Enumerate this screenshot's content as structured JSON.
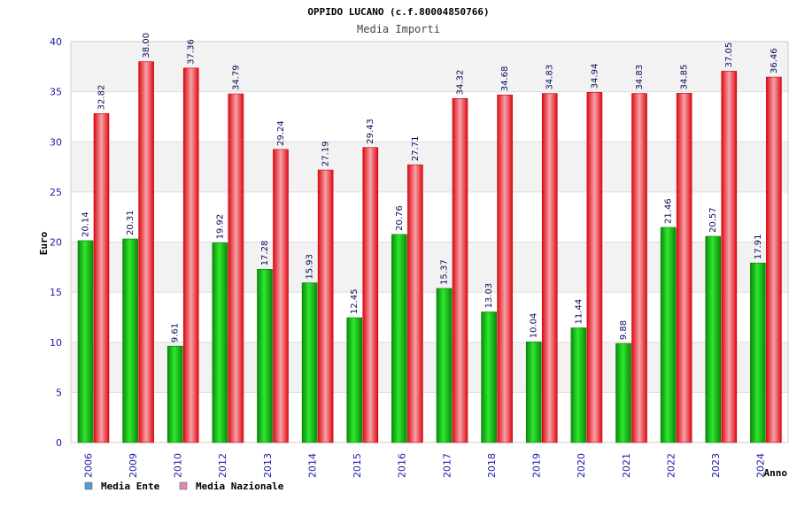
{
  "chart_data": {
    "type": "bar",
    "title": "OPPIDO LUCANO (c.f.80004850766)",
    "subtitle": "Media Importi",
    "xlabel": "Anno",
    "ylabel": "Euro",
    "ylim": [
      0,
      40
    ],
    "yticks": [
      0,
      5,
      10,
      15,
      20,
      25,
      30,
      35,
      40
    ],
    "grid": true,
    "legend_position": "bottom-left",
    "categories": [
      "2006",
      "2009",
      "2010",
      "2012",
      "2013",
      "2014",
      "2015",
      "2016",
      "2017",
      "2018",
      "2019",
      "2020",
      "2021",
      "2022",
      "2023",
      "2024"
    ],
    "series": [
      {
        "name": "Media Ente",
        "legend_color": "#5b9bd5",
        "bar_color": "#11b511",
        "values": [
          20.14,
          20.31,
          9.61,
          19.92,
          17.28,
          15.93,
          12.45,
          20.76,
          15.37,
          13.03,
          10.04,
          11.44,
          9.88,
          21.46,
          20.57,
          17.91
        ],
        "labels": [
          "20.14",
          "20.31",
          "9.61",
          "19.92",
          "17.28",
          "15.93",
          "12.45",
          "20.76",
          "15.37",
          "13.03",
          "10.04",
          "11.44",
          "9.88",
          "21.46",
          "20.57",
          "17.91"
        ]
      },
      {
        "name": "Media Nazionale",
        "legend_color": "#d98cb3",
        "bar_color": "#e8101a",
        "values": [
          32.82,
          38.0,
          37.36,
          34.79,
          29.24,
          27.19,
          29.43,
          27.71,
          34.32,
          34.68,
          34.83,
          34.94,
          34.83,
          34.85,
          37.05,
          36.46
        ],
        "labels": [
          "32.82",
          "38.00",
          "37.36",
          "34.79",
          "29.24",
          "27.19",
          "29.43",
          "27.71",
          "34.32",
          "34.68",
          "34.83",
          "34.94",
          "34.83",
          "34.85",
          "37.05",
          "36.46"
        ]
      }
    ]
  }
}
